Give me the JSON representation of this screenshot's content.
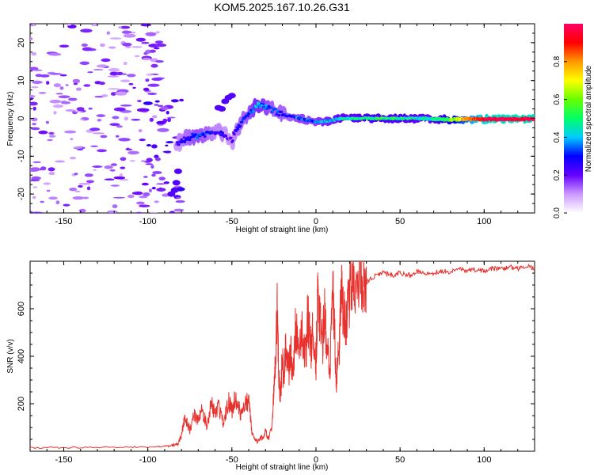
{
  "title": "KOM5.2025.167.10.26.G31",
  "chart_data": [
    {
      "type": "heatmap",
      "xlabel": "Height of straight line (km)",
      "ylabel": "Frequency (Hz)",
      "xlim": [
        -170,
        130
      ],
      "ylim": [
        -25,
        25
      ],
      "xticks": [
        -150,
        -100,
        -50,
        0,
        50,
        100
      ],
      "yticks": [
        -20,
        -10,
        0,
        10,
        20
      ],
      "colorbar": {
        "label": "Normalized spectral amplitude",
        "range": [
          0,
          1
        ],
        "ticks": [
          0.0,
          0.2,
          0.4,
          0.6,
          0.8
        ],
        "tick_labels": [
          "0.0",
          "0.2",
          "0.4",
          "0.6",
          "0.8"
        ],
        "colors": [
          "#ffffff",
          "#cc99ff",
          "#6600ff",
          "#0000ff",
          "#00ccff",
          "#00ff66",
          "#66ff00",
          "#ffff00",
          "#ff9900",
          "#ff0000",
          "#ff0066"
        ]
      },
      "ridge": {
        "x": [
          -83,
          -80,
          -75,
          -70,
          -65,
          -60,
          -55,
          -52,
          -50,
          -48,
          -45,
          -42,
          -38,
          -35,
          -30,
          -25,
          -20,
          -15,
          -10,
          -5,
          0,
          5,
          10,
          15,
          20,
          30,
          40,
          50,
          60,
          70,
          80,
          90,
          100,
          110,
          120,
          130
        ],
        "y": [
          -7,
          -6,
          -5,
          -4.5,
          -4,
          -3.5,
          -4,
          -5,
          -6,
          -3,
          -1.5,
          0,
          2,
          3.5,
          3,
          2,
          1,
          0.5,
          0,
          -0.5,
          -1,
          -0.8,
          -0.5,
          0,
          0,
          0,
          0,
          0,
          0,
          -0.2,
          -0.3,
          -0.2,
          -0.2,
          -0.2,
          -0.2,
          -0.2
        ],
        "amplitude": [
          0.2,
          0.25,
          0.3,
          0.35,
          0.3,
          0.25,
          0.25,
          0.2,
          0.2,
          0.25,
          0.3,
          0.3,
          0.35,
          0.4,
          0.35,
          0.3,
          0.3,
          0.3,
          0.35,
          0.35,
          0.35,
          0.4,
          0.4,
          0.45,
          0.45,
          0.5,
          0.5,
          0.5,
          0.45,
          0.45,
          0.6,
          0.8,
          0.95,
          0.98,
          0.98,
          0.98
        ]
      }
    },
    {
      "type": "line",
      "xlabel": "Height of straight line (km)",
      "ylabel": "SNR (v/v)",
      "xlim": [
        -170,
        130
      ],
      "ylim": [
        0,
        800
      ],
      "xticks": [
        -150,
        -100,
        -50,
        0,
        50,
        100
      ],
      "yticks": [
        200,
        400,
        600
      ],
      "series": [
        {
          "color": "#e8312d",
          "x": [
            -170,
            -150,
            -130,
            -110,
            -95,
            -88,
            -85,
            -82,
            -80,
            -78,
            -75,
            -72,
            -70,
            -68,
            -65,
            -62,
            -60,
            -58,
            -55,
            -52,
            -50,
            -48,
            -45,
            -42,
            -40,
            -38,
            -35,
            -32,
            -30,
            -28,
            -26,
            -25,
            -24,
            -23,
            -22,
            -21,
            -20,
            -19,
            -18,
            -16,
            -15,
            -14,
            -12,
            -10,
            -8,
            -6,
            -5,
            -3,
            -2,
            0,
            1,
            2,
            4,
            5,
            6,
            8,
            10,
            11,
            12,
            14,
            15,
            16,
            18,
            20,
            22,
            25,
            28,
            30,
            35,
            40,
            45,
            50,
            55,
            60,
            65,
            70,
            75,
            80,
            85,
            90,
            95,
            100,
            105,
            110,
            115,
            120,
            125,
            130
          ],
          "y": [
            15,
            16,
            15,
            17,
            20,
            22,
            26,
            30,
            70,
            140,
            90,
            160,
            120,
            180,
            110,
            200,
            150,
            190,
            120,
            210,
            170,
            230,
            160,
            200,
            210,
            70,
            40,
            60,
            80,
            50,
            120,
            260,
            380,
            610,
            300,
            230,
            410,
            260,
            470,
            350,
            420,
            320,
            530,
            420,
            500,
            380,
            570,
            430,
            490,
            350,
            640,
            560,
            450,
            610,
            480,
            330,
            650,
            550,
            280,
            460,
            700,
            580,
            540,
            660,
            700,
            690,
            720,
            710,
            740,
            750,
            740,
            750,
            740,
            755,
            745,
            750,
            760,
            755,
            765,
            760,
            765,
            760,
            770,
            765,
            775,
            770,
            780,
            770
          ]
        }
      ]
    }
  ]
}
